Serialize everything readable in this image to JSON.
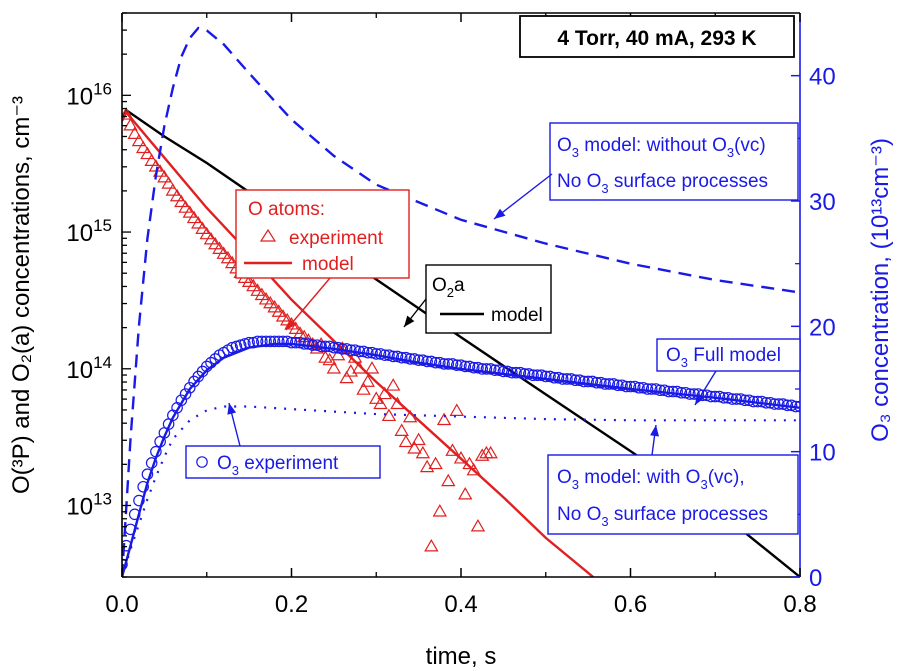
{
  "chart_data": {
    "type": "line",
    "title": "4 Torr, 40 mA, 293 K",
    "xlabel": "time, s",
    "ylabel_left": "O(³P) and O₂(a) concentrations, cm⁻³",
    "ylabel_right": "O₃ concentration, (10¹³cm⁻³)",
    "xlim": [
      0,
      0.8
    ],
    "ylim_left": [
      3000000000000.0,
      4e+16
    ],
    "yscale_left": "log",
    "ylim_right": [
      0,
      45
    ],
    "yscale_right": "linear",
    "x_ticks": [
      "0.0",
      "0.2",
      "0.4",
      "0.6",
      "0.8"
    ],
    "y_left_ticks": [
      {
        "base": "10",
        "exp": "13"
      },
      {
        "base": "10",
        "exp": "14"
      },
      {
        "base": "10",
        "exp": "15"
      },
      {
        "base": "10",
        "exp": "16"
      }
    ],
    "y_right_ticks": [
      "0",
      "10",
      "20",
      "30",
      "40"
    ],
    "colors": {
      "red": "#e02020",
      "blue": "#1a1ae6",
      "black": "#000000"
    },
    "series": [
      {
        "axis": "left",
        "style": "solid",
        "color": "#000000",
        "x": [
          0.0,
          0.005,
          0.05,
          0.1,
          0.2,
          0.3,
          0.4,
          0.5,
          0.6,
          0.7,
          0.8
        ],
        "y": [
          6500000000000000.0,
          7800000000000000.0,
          5000000000000000.0,
          3200000000000000.0,
          1200000000000000.0,
          450000000000000.0,
          170000000000000.0,
          65000000000000.0,
          25000000000000.0,
          9500000000000.0,
          3000000000000.0
        ]
      },
      {
        "axis": "left",
        "style": "solid",
        "color": "#e02020",
        "x": [
          0.0,
          0.005,
          0.05,
          0.1,
          0.15,
          0.2,
          0.25,
          0.3,
          0.35,
          0.4,
          0.45,
          0.5,
          0.556
        ],
        "y": [
          6500000000000000.0,
          7500000000000000.0,
          3500000000000000.0,
          1500000000000000.0,
          700000000000000.0,
          320000000000000.0,
          160000000000000.0,
          80000000000000.0,
          42000000000000.0,
          22000000000000.0,
          11500000000000.0,
          5800000000000.0,
          3000000000000.0
        ]
      },
      {
        "axis": "left",
        "style": "markers",
        "marker": "triangle",
        "color": "#e02020",
        "x": [
          0.005,
          0.01,
          0.015,
          0.02,
          0.025,
          0.03,
          0.035,
          0.04,
          0.045,
          0.05,
          0.055,
          0.06,
          0.065,
          0.07,
          0.075,
          0.08,
          0.085,
          0.09,
          0.095,
          0.1,
          0.105,
          0.11,
          0.115,
          0.12,
          0.125,
          0.13,
          0.135,
          0.14,
          0.145,
          0.15,
          0.155,
          0.16,
          0.165,
          0.17,
          0.175,
          0.18,
          0.185,
          0.19,
          0.195,
          0.2,
          0.205,
          0.21,
          0.215,
          0.22,
          0.225,
          0.23,
          0.235,
          0.24,
          0.245,
          0.25,
          0.255,
          0.26,
          0.265,
          0.27,
          0.275,
          0.28,
          0.285,
          0.29,
          0.295,
          0.3,
          0.305,
          0.31,
          0.315,
          0.32,
          0.325,
          0.33,
          0.335,
          0.34,
          0.345,
          0.35,
          0.355,
          0.36,
          0.365,
          0.37,
          0.375,
          0.38,
          0.385,
          0.39,
          0.395,
          0.4,
          0.405,
          0.41,
          0.415,
          0.42,
          0.425,
          0.43,
          0.435
        ],
        "y": [
          7200000000000000.0,
          6000000000000000.0,
          5200000000000000.0,
          4600000000000000.0,
          4100000000000000.0,
          3700000000000000.0,
          3300000000000000.0,
          3000000000000000.0,
          2750000000000000.0,
          2500000000000000.0,
          2250000000000000.0,
          2000000000000000.0,
          1820000000000000.0,
          1650000000000000.0,
          1500000000000000.0,
          1380000000000000.0,
          1260000000000000.0,
          1150000000000000.0,
          1050000000000000.0,
          960000000000000.0,
          880000000000000.0,
          810000000000000.0,
          750000000000000.0,
          690000000000000.0,
          640000000000000.0,
          590000000000000.0,
          540000000000000.0,
          500000000000000.0,
          460000000000000.0,
          430000000000000.0,
          400000000000000.0,
          370000000000000.0,
          345000000000000.0,
          320000000000000.0,
          300000000000000.0,
          280000000000000.0,
          260000000000000.0,
          240000000000000.0,
          225000000000000.0,
          210000000000000.0,
          195000000000000.0,
          180000000000000.0,
          170000000000000.0,
          160000000000000.0,
          150000000000000.0,
          140000000000000.0,
          150000000000000.0,
          120000000000000.0,
          115000000000000.0,
          100000000000000.0,
          125000000000000.0,
          140000000000000.0,
          85000000000000.0,
          95000000000000.0,
          120000000000000.0,
          100000000000000.0,
          70000000000000.0,
          80000000000000.0,
          100000000000000.0,
          60000000000000.0,
          55000000000000.0,
          65000000000000.0,
          45000000000000.0,
          75000000000000.0,
          55000000000000.0,
          35000000000000.0,
          29000000000000.0,
          44000000000000.0,
          26000000000000.0,
          30000000000000.0,
          24000000000000.0,
          19000000000000.0,
          5000000000000.0,
          20000000000000.0,
          9000000000000.0,
          42000000000000.0,
          15000000000000.0,
          25000000000000.0,
          49000000000000.0,
          22000000000000.0,
          12000000000000.0,
          20000000000000.0,
          18000000000000.0,
          7000000000000.0,
          23000000000000.0,
          24000000000000.0,
          24000000000000.0
        ]
      },
      {
        "axis": "right",
        "style": "dashed",
        "color": "#1a1ae6",
        "x": [
          0.0,
          0.01,
          0.02,
          0.03,
          0.04,
          0.05,
          0.06,
          0.07,
          0.08,
          0.09,
          0.1,
          0.12,
          0.15,
          0.2,
          0.25,
          0.3,
          0.4,
          0.5,
          0.6,
          0.7,
          0.8
        ],
        "y": [
          0,
          11,
          20,
          27,
          32,
          36,
          39,
          41.5,
          43,
          43.8,
          43.6,
          42.5,
          40.2,
          36.5,
          33.6,
          31.3,
          28.5,
          26.6,
          25,
          23.7,
          22.7
        ]
      },
      {
        "axis": "right",
        "style": "solid",
        "color": "#1a1ae6",
        "x": [
          0.0,
          0.01,
          0.02,
          0.03,
          0.04,
          0.05,
          0.06,
          0.08,
          0.1,
          0.12,
          0.15,
          0.18,
          0.2,
          0.25,
          0.3,
          0.35,
          0.4,
          0.5,
          0.6,
          0.7,
          0.8
        ],
        "y": [
          0,
          2.5,
          5,
          7.5,
          9.5,
          11.2,
          12.7,
          15,
          16.5,
          17.5,
          18.3,
          18.6,
          18.6,
          18.2,
          17.7,
          17.1,
          16.6,
          15.8,
          15,
          14.3,
          13.5
        ]
      },
      {
        "axis": "right",
        "style": "markers",
        "marker": "circle",
        "color": "#1a1ae6",
        "x": [
          0.0,
          0.005,
          0.01,
          0.015,
          0.02,
          0.025,
          0.03,
          0.035,
          0.04,
          0.045,
          0.05,
          0.055,
          0.06,
          0.065,
          0.07,
          0.075,
          0.08,
          0.085,
          0.09,
          0.095,
          0.1,
          0.105,
          0.11,
          0.115,
          0.12,
          0.125,
          0.13,
          0.135,
          0.14,
          0.145,
          0.15,
          0.155,
          0.16,
          0.165,
          0.17,
          0.175,
          0.18,
          0.185,
          0.19,
          0.195,
          0.2,
          0.205,
          0.21,
          0.215,
          0.22,
          0.225,
          0.23,
          0.235,
          0.24,
          0.245,
          0.25,
          0.255,
          0.26,
          0.265,
          0.27,
          0.275,
          0.28,
          0.285,
          0.29,
          0.295,
          0.3,
          0.305,
          0.31,
          0.315,
          0.32,
          0.325,
          0.33,
          0.335,
          0.34,
          0.345,
          0.35,
          0.355,
          0.36,
          0.365,
          0.37,
          0.375,
          0.38,
          0.385,
          0.39,
          0.395,
          0.4,
          0.405,
          0.41,
          0.415,
          0.42,
          0.425,
          0.43,
          0.435,
          0.44,
          0.445,
          0.45,
          0.455,
          0.46,
          0.465,
          0.47,
          0.475,
          0.48,
          0.485,
          0.49,
          0.495,
          0.5,
          0.505,
          0.51,
          0.515,
          0.52,
          0.525,
          0.53,
          0.535,
          0.54,
          0.545,
          0.55,
          0.555,
          0.56,
          0.565,
          0.57,
          0.575,
          0.58,
          0.585,
          0.59,
          0.595,
          0.6,
          0.605,
          0.61,
          0.615,
          0.62,
          0.625,
          0.63,
          0.635,
          0.64,
          0.645,
          0.65,
          0.655,
          0.66,
          0.665,
          0.67,
          0.675,
          0.68,
          0.685,
          0.69,
          0.695,
          0.7,
          0.705,
          0.71,
          0.715,
          0.72,
          0.725,
          0.73,
          0.735,
          0.74,
          0.745,
          0.75,
          0.755,
          0.76,
          0.765,
          0.77,
          0.775,
          0.78,
          0.785,
          0.79,
          0.795,
          0.8
        ],
        "y": [
          1.0,
          2.5,
          3.8,
          5.0,
          6.1,
          7.2,
          8.2,
          9.1,
          10.0,
          10.8,
          11.5,
          12.2,
          12.9,
          13.5,
          14.1,
          14.6,
          15.1,
          15.6,
          16.0,
          16.4,
          16.8,
          17.1,
          17.4,
          17.7,
          17.9,
          18.1,
          18.3,
          18.4,
          18.5,
          18.6,
          18.7,
          18.7,
          18.8,
          18.8,
          18.8,
          18.8,
          18.8,
          18.8,
          18.8,
          18.8,
          18.7,
          18.7,
          18.7,
          18.6,
          18.6,
          18.5,
          18.5,
          18.4,
          18.4,
          18.4,
          18.3,
          18.3,
          18.2,
          18.2,
          18.1,
          18.1,
          18.0,
          18.0,
          17.9,
          17.9,
          17.8,
          17.8,
          17.7,
          17.7,
          17.6,
          17.6,
          17.5,
          17.5,
          17.4,
          17.4,
          17.3,
          17.3,
          17.2,
          17.2,
          17.1,
          17.1,
          17.0,
          17.0,
          17.0,
          16.9,
          16.9,
          16.8,
          16.8,
          16.7,
          16.7,
          16.6,
          16.6,
          16.6,
          16.5,
          16.5,
          16.4,
          16.4,
          16.3,
          16.3,
          16.3,
          16.2,
          16.2,
          16.1,
          16.1,
          16.1,
          16.0,
          16.0,
          15.9,
          15.9,
          15.8,
          15.8,
          15.8,
          15.7,
          15.7,
          15.6,
          15.6,
          15.6,
          15.5,
          15.5,
          15.4,
          15.4,
          15.4,
          15.3,
          15.3,
          15.2,
          15.2,
          15.2,
          15.1,
          15.1,
          15.0,
          15.0,
          15.0,
          14.9,
          14.9,
          14.8,
          14.8,
          14.8,
          14.7,
          14.7,
          14.6,
          14.6,
          14.6,
          14.5,
          14.5,
          14.4,
          14.4,
          14.4,
          14.3,
          14.3,
          14.2,
          14.2,
          14.2,
          14.1,
          14.1,
          14.0,
          14.0,
          14.0,
          13.9,
          13.9,
          13.8,
          13.8,
          13.8,
          13.7,
          13.7,
          13.6,
          13.6
        ]
      },
      {
        "axis": "right",
        "style": "dotted",
        "color": "#1a1ae6",
        "x": [
          0.0,
          0.01,
          0.02,
          0.03,
          0.04,
          0.05,
          0.06,
          0.08,
          0.1,
          0.12,
          0.15,
          0.2,
          0.25,
          0.3,
          0.35,
          0.4,
          0.5,
          0.6,
          0.7,
          0.8
        ],
        "y": [
          0,
          2.2,
          4.2,
          6.2,
          8,
          9.6,
          11,
          12.5,
          13.3,
          13.6,
          13.6,
          13.4,
          13.2,
          13.0,
          12.9,
          12.8,
          12.6,
          12.5,
          12.5,
          12.5
        ]
      }
    ],
    "annotations": {
      "condition_box": "4 Torr, 40 mA, 293 K",
      "o_atoms_header": "O atoms:",
      "o_atoms_experiment": "experiment",
      "o_atoms_model": "model",
      "o2a_header": {
        "base": "O",
        "sub": "2",
        "tail": "a"
      },
      "o2a_model": "model",
      "o3_without_vc_line1": {
        "a": "O",
        "sub": "3",
        "b": " model: without O",
        "sub2": "3",
        "c": "(vc)"
      },
      "o3_without_vc_line2": {
        "a": "No O",
        "sub": "3",
        "b": " surface processes"
      },
      "o3_full_model": {
        "a": "O",
        "sub": "3",
        "b": " Full model"
      },
      "o3_experiment": {
        "a": "O",
        "sub": "3",
        "b": "  experiment"
      },
      "o3_with_vc_line1": {
        "a": "O",
        "sub": "3",
        "b": " model: with O",
        "sub2": "3",
        "c": "(vc),"
      },
      "o3_with_vc_line2": {
        "a": "No O",
        "sub": "3",
        "b": " surface processes"
      }
    }
  }
}
